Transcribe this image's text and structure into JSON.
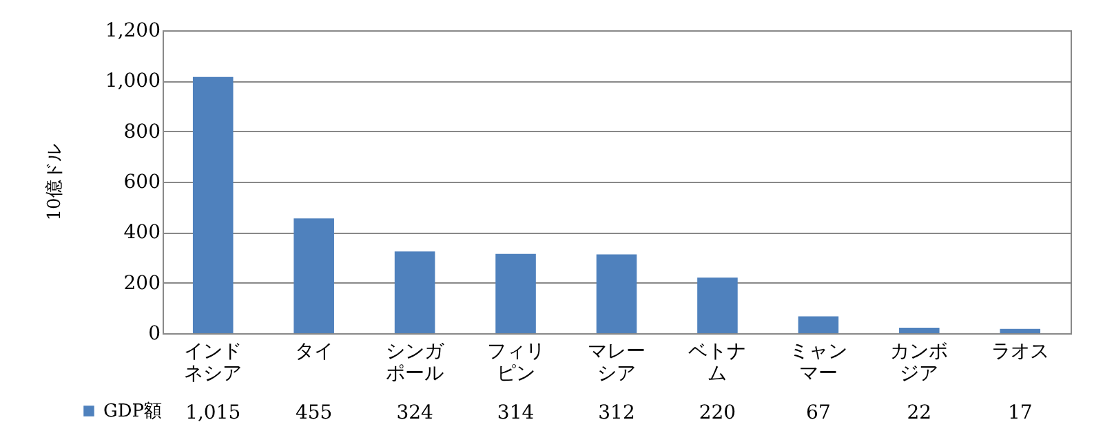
{
  "chart_data": {
    "type": "bar",
    "ylabel": "10億ドル",
    "categories": [
      "インドネシア",
      "タイ",
      "シンガポール",
      "フィリピン",
      "マレーシア",
      "ベトナム",
      "ミャンマー",
      "カンボジア",
      "ラオス"
    ],
    "series": [
      {
        "name": "GDP額",
        "color": "#4f81bd",
        "values": [
          1015,
          455,
          324,
          314,
          312,
          220,
          67,
          22,
          17
        ],
        "value_labels": [
          "1,015",
          "455",
          "324",
          "314",
          "312",
          "220",
          "67",
          "22",
          "17"
        ]
      }
    ],
    "ylim": [
      0,
      1200
    ],
    "yticks": [
      0,
      200,
      400,
      600,
      800,
      {
        "value": 1000,
        "label": "1,000"
      },
      {
        "value": 1200,
        "label": "1,200"
      }
    ],
    "grid": "y",
    "legend": "bottom left"
  }
}
